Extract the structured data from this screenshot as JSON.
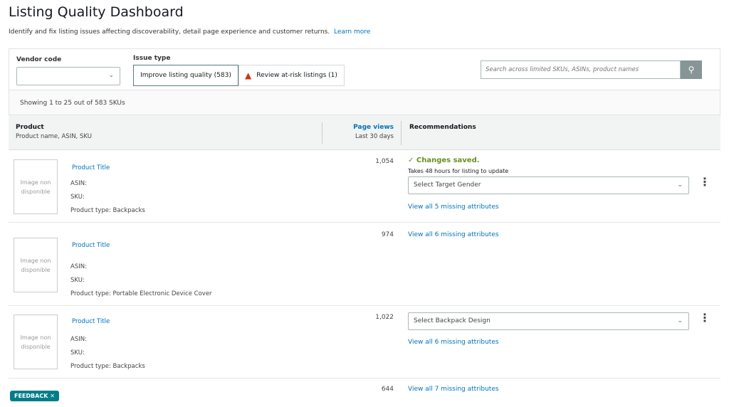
{
  "title": "Listing Quality Dashboard",
  "subtitle": "Identify and fix listing issues affecting discoverability, detail page experience and customer returns.",
  "learn_more": "Learn more",
  "filters": {
    "vendor_label": "Vendor code",
    "vendor_value": "",
    "issue_label": "Issue type",
    "issue_tabs": [
      {
        "label": "Improve listing quality (583)",
        "selected": true
      },
      {
        "label": "Review at-risk listings (1)",
        "icon": "warning-icon"
      }
    ],
    "search_placeholder": "Search across limited SKUs, ASINs, product names"
  },
  "showing": "Showing 1 to 25 out of 583 SKUs",
  "table": {
    "product_header": "Product",
    "product_sub": "Product name, ASIN, SKU",
    "pv_header": "Page views",
    "pv_sub": "Last 30 days",
    "rec_header": "Recommendations"
  },
  "rows": [
    {
      "image": "Image non disponible",
      "title": "Product Title",
      "asin": "ASIN:",
      "sku": "SKU:",
      "type": "Product type: Backpacks",
      "views": "1,054",
      "saved": "Changes saved.",
      "saved_note": "Takes 48 hours for listing to update",
      "select": "Select Target Gender",
      "view_all": "View all 5 missing attributes"
    },
    {
      "image": "Image non disponible",
      "title": "Product Title",
      "asin": "ASIN:",
      "sku": "SKU:",
      "type": "Product type: Portable Electronic Device Cover",
      "views": "974",
      "view_all": "View all 6 missing attributes"
    },
    {
      "image": "Image non disponible",
      "title": "Product Title",
      "asin": "ASIN:",
      "sku": "SKU:",
      "type": "Product type: Backpacks",
      "views": "1,022",
      "select": "Select Backpack Design",
      "view_all": "View all 6 missing attributes"
    },
    {
      "views": "644",
      "view_all": "View all 7 missing attributes"
    }
  ],
  "feedback": "FEEDBACK",
  "colors": {
    "link": "#0073bb",
    "success": "#6b8e23",
    "warning": "#d13212",
    "feedback": "#007d8a"
  }
}
